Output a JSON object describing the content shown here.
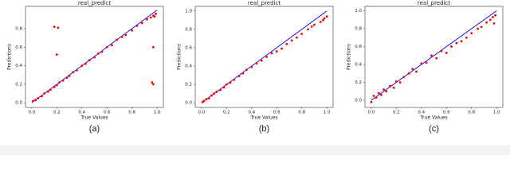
{
  "chart_data": [
    {
      "type": "scatter",
      "title": "real_predict",
      "x_label": "True Values",
      "y_label": "Predictions",
      "caption": "(a)",
      "color": "#ff0000",
      "x": [
        0.01,
        0.03,
        0.05,
        0.08,
        0.1,
        0.13,
        0.15,
        0.18,
        0.2,
        0.22,
        0.25,
        0.28,
        0.3,
        0.33,
        0.36,
        0.4,
        0.43,
        0.46,
        0.5,
        0.53,
        0.56,
        0.6,
        0.64,
        0.68,
        0.72,
        0.75,
        0.8,
        0.84,
        0.88,
        0.92,
        0.95,
        0.97,
        0.98,
        0.99,
        0.18,
        0.21,
        0.2,
        0.97,
        0.97,
        0.96
      ],
      "values": [
        0.02,
        0.03,
        0.05,
        0.07,
        0.1,
        0.12,
        0.14,
        0.17,
        0.19,
        0.22,
        0.24,
        0.27,
        0.29,
        0.33,
        0.35,
        0.4,
        0.42,
        0.46,
        0.49,
        0.53,
        0.55,
        0.6,
        0.62,
        0.68,
        0.71,
        0.73,
        0.78,
        0.83,
        0.86,
        0.9,
        0.92,
        0.94,
        0.93,
        0.96,
        0.82,
        0.81,
        0.52,
        0.6,
        0.2,
        0.22
      ],
      "line": {
        "x": [
          0,
          1
        ],
        "y": [
          0,
          1
        ],
        "color": "#0000ff"
      },
      "xlim": [
        -0.05,
        1.05
      ],
      "ylim": [
        -0.05,
        1.04
      ],
      "xticks": [
        {
          "value": 0,
          "label": "0.0"
        },
        0.2,
        0.4,
        0.6,
        0.8,
        {
          "value": 1,
          "label": "1.0"
        }
      ],
      "yticks": [
        {
          "value": 0,
          "label": "0.0"
        },
        0.2,
        0.4,
        0.6,
        0.8
      ]
    },
    {
      "type": "scatter",
      "title": "real_predict",
      "x_label": "True Values",
      "y_label": "Predictions",
      "caption": "(b)",
      "color": "#ff0000",
      "x": [
        0.01,
        0.02,
        0.04,
        0.06,
        0.08,
        0.1,
        0.12,
        0.15,
        0.18,
        0.2,
        0.23,
        0.26,
        0.3,
        0.33,
        0.36,
        0.4,
        0.44,
        0.48,
        0.52,
        0.56,
        0.6,
        0.64,
        0.68,
        0.72,
        0.76,
        0.8,
        0.85,
        0.88,
        0.9,
        0.95,
        0.97,
        0.98,
        1.0
      ],
      "values": [
        0.01,
        0.02,
        0.04,
        0.05,
        0.08,
        0.1,
        0.12,
        0.14,
        0.17,
        0.2,
        0.22,
        0.25,
        0.29,
        0.32,
        0.36,
        0.39,
        0.43,
        0.46,
        0.5,
        0.54,
        0.56,
        0.59,
        0.64,
        0.68,
        0.71,
        0.75,
        0.8,
        0.83,
        0.85,
        0.88,
        0.9,
        0.92,
        0.94
      ],
      "line": {
        "x": [
          0,
          1
        ],
        "y": [
          0,
          1
        ],
        "color": "#0000ff"
      },
      "xlim": [
        -0.05,
        1.05
      ],
      "ylim": [
        -0.05,
        1.05
      ],
      "xticks": [
        {
          "value": 0,
          "label": "0.0"
        },
        0.2,
        0.4,
        0.6,
        0.8,
        {
          "value": 1,
          "label": "1.0"
        }
      ],
      "yticks": [
        {
          "value": 0,
          "label": "0.0"
        },
        0.2,
        0.4,
        0.6,
        0.8,
        {
          "value": 1,
          "label": "1.0"
        }
      ]
    },
    {
      "type": "scatter",
      "title": "real_predict",
      "x_label": "True Values",
      "y_label": "Predictions",
      "caption": "(c)",
      "color": "#ff0000",
      "x": [
        0.0,
        0.02,
        0.04,
        0.06,
        0.08,
        0.1,
        0.12,
        0.15,
        0.18,
        0.2,
        0.23,
        0.26,
        0.3,
        0.33,
        0.36,
        0.4,
        0.44,
        0.48,
        0.52,
        0.56,
        0.6,
        0.64,
        0.68,
        0.72,
        0.76,
        0.8,
        0.85,
        0.88,
        0.92,
        0.95,
        0.97,
        0.99,
        0.98
      ],
      "values": [
        -0.02,
        0.05,
        0.03,
        0.08,
        0.06,
        0.12,
        0.1,
        0.16,
        0.14,
        0.21,
        0.2,
        0.26,
        0.3,
        0.35,
        0.32,
        0.41,
        0.42,
        0.5,
        0.47,
        0.55,
        0.53,
        0.6,
        0.64,
        0.66,
        0.7,
        0.75,
        0.8,
        0.82,
        0.87,
        0.9,
        0.93,
        0.95,
        0.86
      ],
      "line": {
        "x": [
          0,
          1
        ],
        "y": [
          0,
          1
        ],
        "color": "#0000ff"
      },
      "xlim": [
        -0.05,
        1.05
      ],
      "ylim": [
        -0.08,
        1.05
      ],
      "xticks": [
        {
          "value": 0,
          "label": "0.0"
        },
        0.2,
        0.4,
        0.6,
        0.8,
        {
          "value": 1,
          "label": "1.0"
        }
      ],
      "yticks": [
        {
          "value": 0,
          "label": "0.0"
        },
        0.2,
        0.4,
        0.6,
        0.8,
        {
          "value": 1,
          "label": "1.0"
        }
      ]
    }
  ]
}
